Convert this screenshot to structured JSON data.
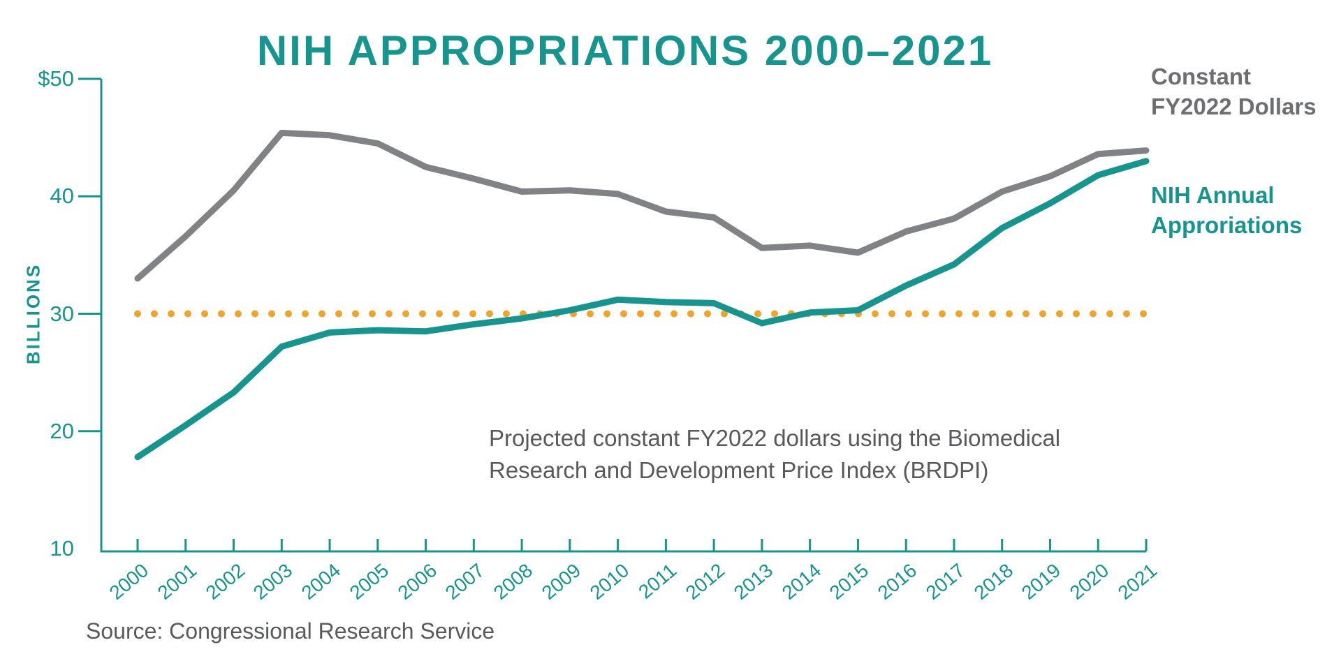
{
  "title": "NIH APPROPRIATIONS 2000–2021",
  "y_axis": {
    "axis_title": "BILLIONS",
    "tick_labels": [
      "$50",
      "40",
      "30",
      "20",
      "10"
    ],
    "tick_values": [
      50,
      40,
      30,
      20,
      10
    ]
  },
  "x_axis": {
    "tick_labels": [
      "2000",
      "2001",
      "2002",
      "2003",
      "2004",
      "2005",
      "2006",
      "2007",
      "2008",
      "2009",
      "2010",
      "2011",
      "2012",
      "2013",
      "2014",
      "2015",
      "2016",
      "2017",
      "2018",
      "2019",
      "2020",
      "2021"
    ]
  },
  "legend": {
    "constant": {
      "line1": "Constant",
      "line2": "FY2022 Dollars"
    },
    "nih": {
      "line1": "NIH Annual",
      "line2": "Approriations"
    }
  },
  "annotation": {
    "line1": "Projected constant FY2022 dollars using the Biomedical",
    "line2": "Research and Development Price Index (BRDPI)"
  },
  "source": "Source: Congressional Research Service",
  "colors": {
    "teal": "#17948E",
    "gray_line": "#808285",
    "orange": "#F0A42E",
    "legend_gray": "#6D6E71",
    "text_gray": "#58595B"
  },
  "chart_data": {
    "type": "line",
    "x": [
      2000,
      2001,
      2002,
      2003,
      2004,
      2005,
      2006,
      2007,
      2008,
      2009,
      2010,
      2011,
      2012,
      2013,
      2014,
      2015,
      2016,
      2017,
      2018,
      2019,
      2020,
      2021
    ],
    "series": [
      {
        "name": "Constant FY2022 Dollars",
        "color": "#808285",
        "values": [
          33.0,
          36.6,
          40.5,
          45.4,
          45.2,
          44.5,
          42.5,
          41.5,
          40.4,
          40.5,
          40.2,
          38.7,
          38.2,
          35.6,
          35.8,
          35.2,
          37.0,
          38.1,
          40.4,
          41.7,
          43.6,
          43.9
        ]
      },
      {
        "name": "NIH Annual Approriations",
        "color": "#17948E",
        "values": [
          17.8,
          20.5,
          23.3,
          27.2,
          28.4,
          28.6,
          28.5,
          29.1,
          29.6,
          30.3,
          31.2,
          31.0,
          30.9,
          29.2,
          30.1,
          30.3,
          32.4,
          34.2,
          37.3,
          39.4,
          41.8,
          43.0
        ]
      }
    ],
    "reference_line": {
      "value": 30,
      "style": "dotted",
      "color": "#F0A42E"
    },
    "title": "NIH APPROPRIATIONS 2000–2021",
    "xlabel": "",
    "ylabel": "BILLIONS",
    "ylim": [
      10,
      50
    ],
    "grid": false,
    "legend_position": "right"
  }
}
